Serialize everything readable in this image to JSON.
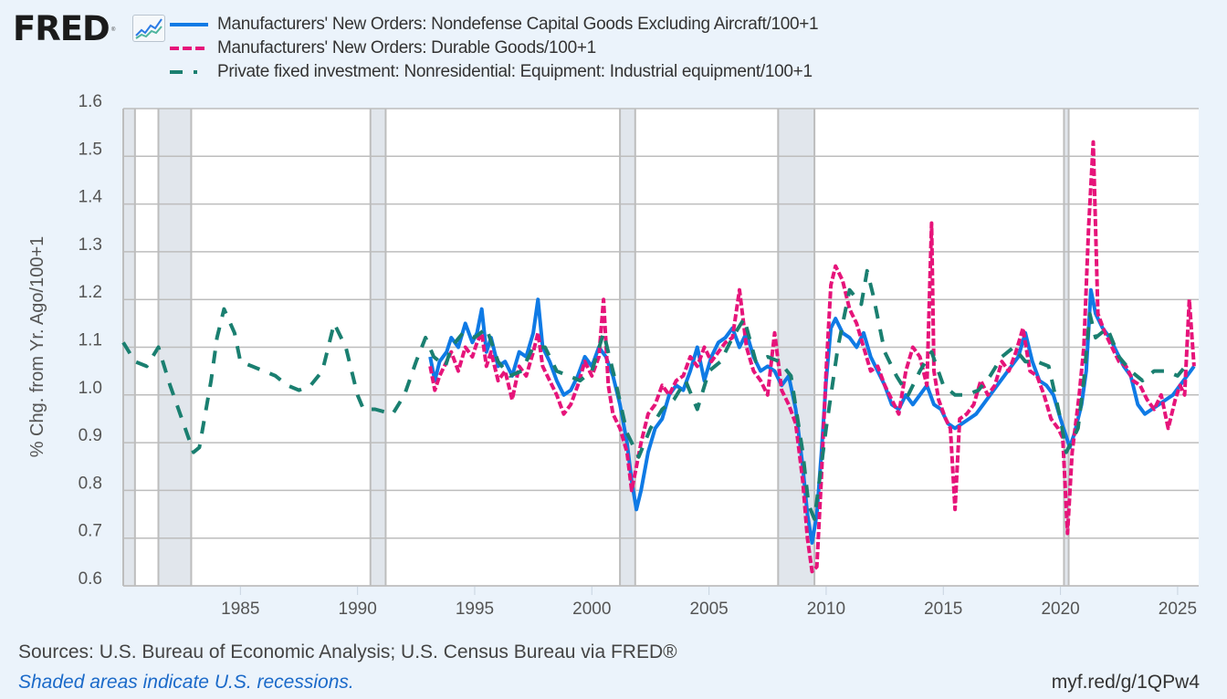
{
  "branding": {
    "logo_text": "FRED",
    "logo_reg": "®",
    "logo_icon": "line-chart-icon"
  },
  "chart_data": {
    "type": "line",
    "title": "",
    "xlabel": "",
    "ylabel": "% Chg. from Yr. Ago/100+1",
    "xlim": [
      1980.0,
      2025.9
    ],
    "ylim": [
      0.6,
      1.6
    ],
    "grid": true,
    "legend_position": "top-left",
    "x_ticks": [
      1985,
      1990,
      1995,
      2000,
      2005,
      2010,
      2015,
      2020,
      2025
    ],
    "x_tick_labels": [
      "1985",
      "1990",
      "1995",
      "2000",
      "2005",
      "2010",
      "2015",
      "2020",
      "2025"
    ],
    "y_ticks": [
      0.6,
      0.7,
      0.8,
      0.9,
      1.0,
      1.1,
      1.2,
      1.3,
      1.4,
      1.5,
      1.6
    ],
    "y_tick_labels": [
      "0.6",
      "0.7",
      "0.8",
      "0.9",
      "1.0",
      "1.1",
      "1.2",
      "1.3",
      "1.4",
      "1.5",
      "1.6"
    ],
    "recessions": [
      [
        1980.0,
        1980.5
      ],
      [
        1981.5,
        1982.9
      ],
      [
        1990.55,
        1991.2
      ],
      [
        2001.2,
        2001.85
      ],
      [
        2007.95,
        2009.5
      ],
      [
        2020.15,
        2020.35
      ]
    ],
    "series": [
      {
        "name": "Manufacturers' New Orders: Nondefense Capital Goods Excluding Aircraft/100+1",
        "color": "#0f7ae5",
        "style": "solid",
        "x": [
          1993.1,
          1993.3,
          1993.5,
          1993.8,
          1994.0,
          1994.3,
          1994.6,
          1994.9,
          1995.1,
          1995.3,
          1995.5,
          1995.7,
          1996.0,
          1996.3,
          1996.6,
          1996.9,
          1997.2,
          1997.5,
          1997.7,
          1997.9,
          1998.2,
          1998.5,
          1998.8,
          1999.1,
          1999.4,
          1999.7,
          2000.0,
          2000.3,
          2000.6,
          2000.9,
          2001.2,
          2001.5,
          2001.7,
          2001.9,
          2002.1,
          2002.4,
          2002.7,
          2003.0,
          2003.3,
          2003.6,
          2003.9,
          2004.2,
          2004.5,
          2004.8,
          2005.1,
          2005.4,
          2005.7,
          2006.0,
          2006.3,
          2006.6,
          2006.9,
          2007.2,
          2007.5,
          2007.8,
          2008.1,
          2008.4,
          2008.7,
          2009.0,
          2009.2,
          2009.4,
          2009.6,
          2009.8,
          2010.0,
          2010.2,
          2010.4,
          2010.7,
          2011.0,
          2011.3,
          2011.6,
          2011.9,
          2012.2,
          2012.5,
          2012.8,
          2013.1,
          2013.4,
          2013.7,
          2014.0,
          2014.3,
          2014.6,
          2014.9,
          2015.2,
          2015.5,
          2015.8,
          2016.1,
          2016.4,
          2016.7,
          2017.0,
          2017.3,
          2017.6,
          2017.9,
          2018.2,
          2018.5,
          2018.8,
          2019.1,
          2019.4,
          2019.7,
          2020.0,
          2020.2,
          2020.4,
          2020.6,
          2020.9,
          2021.1,
          2021.3,
          2021.5,
          2021.8,
          2022.1,
          2022.4,
          2022.7,
          2023.0,
          2023.3,
          2023.6,
          2023.9,
          2024.2,
          2024.5,
          2024.8,
          2025.1,
          2025.4,
          2025.7
        ],
        "y": [
          1.08,
          1.03,
          1.07,
          1.09,
          1.12,
          1.1,
          1.15,
          1.11,
          1.13,
          1.18,
          1.09,
          1.12,
          1.06,
          1.07,
          1.04,
          1.09,
          1.08,
          1.13,
          1.2,
          1.1,
          1.07,
          1.03,
          1.0,
          1.01,
          1.04,
          1.08,
          1.06,
          1.1,
          1.08,
          1.04,
          0.98,
          0.9,
          0.82,
          0.76,
          0.8,
          0.88,
          0.93,
          0.95,
          1.0,
          1.02,
          1.01,
          1.05,
          1.1,
          1.03,
          1.08,
          1.11,
          1.12,
          1.14,
          1.1,
          1.13,
          1.08,
          1.05,
          1.06,
          1.05,
          1.02,
          1.04,
          0.97,
          0.85,
          0.75,
          0.69,
          0.75,
          0.88,
          1.03,
          1.14,
          1.16,
          1.13,
          1.12,
          1.1,
          1.13,
          1.08,
          1.05,
          1.02,
          0.98,
          0.97,
          1.0,
          0.98,
          1.0,
          1.02,
          0.98,
          0.97,
          0.94,
          0.93,
          0.94,
          0.95,
          0.96,
          0.98,
          1.0,
          1.02,
          1.04,
          1.06,
          1.08,
          1.13,
          1.07,
          1.03,
          1.02,
          1.0,
          0.95,
          0.92,
          0.89,
          0.92,
          0.98,
          1.05,
          1.22,
          1.17,
          1.14,
          1.12,
          1.09,
          1.06,
          1.04,
          0.98,
          0.96,
          0.97,
          0.98,
          0.99,
          1.0,
          1.02,
          1.04,
          1.06
        ]
      },
      {
        "name": "Manufacturers' New Orders: Durable Goods/100+1",
        "color": "#e6147a",
        "style": "dashed",
        "x": [
          1993.1,
          1993.3,
          1993.5,
          1993.8,
          1994.0,
          1994.3,
          1994.6,
          1994.9,
          1995.1,
          1995.3,
          1995.5,
          1995.7,
          1996.0,
          1996.3,
          1996.6,
          1996.9,
          1997.2,
          1997.5,
          1997.7,
          1997.9,
          1998.2,
          1998.5,
          1998.8,
          1999.1,
          1999.4,
          1999.7,
          2000.0,
          2000.3,
          2000.5,
          2000.7,
          2000.9,
          2001.2,
          2001.5,
          2001.7,
          2001.9,
          2002.1,
          2002.4,
          2002.7,
          2003.0,
          2003.3,
          2003.6,
          2003.9,
          2004.2,
          2004.5,
          2004.8,
          2005.1,
          2005.4,
          2005.7,
          2006.0,
          2006.3,
          2006.6,
          2006.9,
          2007.2,
          2007.5,
          2007.8,
          2008.1,
          2008.4,
          2008.7,
          2009.0,
          2009.2,
          2009.4,
          2009.6,
          2009.8,
          2010.0,
          2010.2,
          2010.4,
          2010.7,
          2011.0,
          2011.3,
          2011.6,
          2011.9,
          2012.2,
          2012.5,
          2012.8,
          2013.1,
          2013.4,
          2013.7,
          2014.0,
          2014.3,
          2014.5,
          2014.6,
          2014.8,
          2015.1,
          2015.3,
          2015.5,
          2015.7,
          2016.0,
          2016.3,
          2016.6,
          2016.9,
          2017.2,
          2017.5,
          2017.8,
          2018.1,
          2018.4,
          2018.7,
          2019.0,
          2019.3,
          2019.6,
          2019.9,
          2020.1,
          2020.3,
          2020.5,
          2020.8,
          2021.0,
          2021.2,
          2021.4,
          2021.6,
          2021.9,
          2022.2,
          2022.5,
          2022.8,
          2023.1,
          2023.4,
          2023.7,
          2024.0,
          2024.3,
          2024.6,
          2024.9,
          2025.1,
          2025.3,
          2025.5,
          2025.7
        ],
        "y": [
          1.06,
          1.01,
          1.04,
          1.07,
          1.09,
          1.05,
          1.1,
          1.08,
          1.11,
          1.13,
          1.06,
          1.09,
          1.03,
          1.05,
          0.99,
          1.06,
          1.04,
          1.09,
          1.13,
          1.06,
          1.03,
          1.0,
          0.96,
          0.98,
          1.02,
          1.07,
          1.04,
          1.08,
          1.2,
          1.02,
          0.96,
          0.93,
          0.88,
          0.8,
          0.85,
          0.9,
          0.96,
          0.98,
          1.02,
          1.0,
          1.03,
          1.04,
          1.08,
          1.06,
          1.1,
          1.07,
          1.09,
          1.11,
          1.12,
          1.22,
          1.1,
          1.05,
          1.03,
          1.0,
          1.13,
          1.01,
          0.98,
          0.94,
          0.82,
          0.7,
          0.63,
          0.64,
          0.83,
          1.05,
          1.23,
          1.27,
          1.24,
          1.18,
          1.15,
          1.1,
          1.05,
          1.06,
          1.02,
          0.99,
          0.96,
          1.05,
          1.1,
          1.08,
          1.02,
          1.36,
          1.05,
          0.99,
          0.95,
          0.93,
          0.76,
          0.95,
          0.96,
          0.98,
          1.03,
          1.0,
          1.02,
          1.07,
          1.05,
          1.09,
          1.14,
          1.05,
          1.04,
          1.0,
          0.95,
          0.93,
          0.91,
          0.71,
          0.88,
          1.0,
          1.1,
          1.35,
          1.53,
          1.17,
          1.13,
          1.1,
          1.07,
          1.06,
          1.03,
          1.02,
          0.99,
          0.97,
          1.0,
          0.93,
          0.99,
          1.02,
          1.0,
          1.2,
          1.06
        ]
      },
      {
        "name": "Private fixed investment: Nonresidential: Equipment: Industrial equipment/100+1",
        "color": "#1a7f70",
        "style": "dash-gap",
        "x": [
          1980.0,
          1980.5,
          1981.0,
          1981.5,
          1982.0,
          1982.5,
          1983.0,
          1983.25,
          1983.75,
          1984.0,
          1984.3,
          1984.75,
          1985.0,
          1985.5,
          1986.0,
          1986.5,
          1987.0,
          1987.5,
          1988.0,
          1988.5,
          1989.0,
          1989.5,
          1990.0,
          1990.25,
          1990.75,
          1991.5,
          1992.0,
          1992.5,
          1992.9,
          1993.25,
          1993.75,
          1994.0,
          1994.5,
          1995.0,
          1995.5,
          1996.0,
          1996.5,
          1997.0,
          1997.5,
          1998.0,
          1998.5,
          1999.0,
          1999.5,
          2000.0,
          2000.5,
          2001.0,
          2001.5,
          2002.0,
          2002.5,
          2003.0,
          2003.5,
          2004.0,
          2004.5,
          2005.0,
          2005.5,
          2006.0,
          2006.5,
          2007.0,
          2007.5,
          2008.0,
          2008.5,
          2009.0,
          2009.25,
          2009.5,
          2010.0,
          2010.5,
          2011.0,
          2011.5,
          2011.75,
          2012.0,
          2012.5,
          2013.0,
          2013.5,
          2014.0,
          2014.5,
          2015.0,
          2015.5,
          2016.0,
          2016.5,
          2017.0,
          2017.5,
          2018.0,
          2018.5,
          2019.0,
          2019.5,
          2020.0,
          2020.25,
          2020.75,
          2021.0,
          2021.25,
          2021.5,
          2022.0,
          2022.5,
          2023.0,
          2023.5,
          2024.0,
          2024.5,
          2025.0,
          2025.5
        ],
        "y": [
          1.11,
          1.07,
          1.06,
          1.1,
          1.02,
          0.95,
          0.88,
          0.89,
          1.03,
          1.12,
          1.18,
          1.13,
          1.07,
          1.06,
          1.05,
          1.04,
          1.02,
          1.01,
          1.02,
          1.05,
          1.15,
          1.1,
          1.0,
          0.97,
          0.97,
          0.96,
          1.0,
          1.07,
          1.12,
          1.08,
          1.06,
          1.1,
          1.13,
          1.12,
          1.14,
          1.07,
          1.04,
          1.05,
          1.1,
          1.1,
          1.05,
          1.04,
          1.03,
          1.05,
          1.13,
          1.03,
          0.92,
          0.87,
          0.93,
          0.97,
          0.99,
          1.03,
          0.97,
          1.05,
          1.07,
          1.12,
          1.16,
          1.07,
          1.08,
          1.07,
          1.04,
          0.88,
          0.77,
          0.74,
          0.93,
          1.1,
          1.22,
          1.19,
          1.26,
          1.21,
          1.09,
          1.04,
          1.0,
          1.05,
          1.09,
          1.02,
          1.0,
          1.0,
          1.01,
          1.04,
          1.08,
          1.1,
          1.07,
          1.07,
          1.06,
          0.95,
          0.88,
          0.93,
          1.03,
          1.17,
          1.12,
          1.14,
          1.08,
          1.05,
          1.03,
          1.05,
          1.05,
          1.04,
          1.07
        ]
      }
    ]
  },
  "legend": [
    {
      "label": "Manufacturers' New Orders: Nondefense Capital Goods Excluding Aircraft/100+1",
      "color": "#0f7ae5",
      "style": "solid"
    },
    {
      "label": "Manufacturers' New Orders: Durable Goods/100+1",
      "color": "#e6147a",
      "style": "dashed"
    },
    {
      "label": "Private fixed investment: Nonresidential: Equipment: Industrial equipment/100+1",
      "color": "#1a7f70",
      "style": "dash-gap"
    }
  ],
  "footer": {
    "sources": "Sources: U.S. Bureau of Economic Analysis; U.S. Census Bureau via FRED®",
    "recession_note": "Shaded areas indicate U.S. recessions.",
    "short_link": "myf.red/g/1QPw4"
  },
  "colors": {
    "background": "#ebf3fb",
    "plot_background": "#ffffff",
    "recession_shade": "#e1e6ec",
    "gridline": "#bdbdbd"
  }
}
